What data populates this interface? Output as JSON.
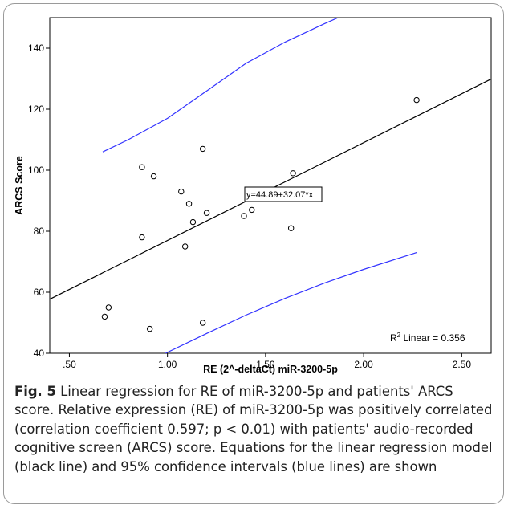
{
  "chart_data": {
    "type": "scatter",
    "xlabel": "RE (2^-deltaCt) miR-3200-5p",
    "ylabel": "ARCS Score",
    "xlim": [
      0.4,
      2.65
    ],
    "ylim": [
      40,
      150
    ],
    "x_ticks": [
      0.5,
      1.0,
      1.5,
      2.0,
      2.5
    ],
    "x_tick_labels": [
      ".50",
      "1.00",
      "1.50",
      "2.00",
      "2.50"
    ],
    "y_ticks": [
      40,
      60,
      80,
      100,
      120,
      140
    ],
    "y_tick_labels": [
      "40",
      "60",
      "80",
      "100",
      "120",
      "140"
    ],
    "points": [
      {
        "x": 0.68,
        "y": 52
      },
      {
        "x": 0.7,
        "y": 55
      },
      {
        "x": 0.87,
        "y": 78
      },
      {
        "x": 0.87,
        "y": 101
      },
      {
        "x": 0.91,
        "y": 48
      },
      {
        "x": 0.93,
        "y": 98
      },
      {
        "x": 1.07,
        "y": 93
      },
      {
        "x": 1.09,
        "y": 75
      },
      {
        "x": 1.11,
        "y": 89
      },
      {
        "x": 1.13,
        "y": 83
      },
      {
        "x": 1.18,
        "y": 107
      },
      {
        "x": 1.18,
        "y": 50
      },
      {
        "x": 1.2,
        "y": 86
      },
      {
        "x": 1.39,
        "y": 85
      },
      {
        "x": 1.43,
        "y": 87
      },
      {
        "x": 1.63,
        "y": 81
      },
      {
        "x": 1.64,
        "y": 99
      },
      {
        "x": 2.27,
        "y": 123
      }
    ],
    "fit_line": {
      "intercept": 44.89,
      "slope": 32.07,
      "x_range": [
        0.4,
        2.65
      ]
    },
    "confidence_upper": {
      "x": [
        0.67,
        0.8,
        1.0,
        1.2,
        1.4,
        1.6,
        1.8,
        1.94
      ],
      "y": [
        106,
        110,
        117,
        126,
        135,
        142,
        148,
        152
      ]
    },
    "confidence_lower": {
      "x": [
        0.99,
        1.2,
        1.4,
        1.6,
        1.8,
        2.0,
        2.27
      ],
      "y": [
        40,
        46.5,
        52.5,
        58,
        63,
        67.5,
        73
      ]
    },
    "fit_colors": {
      "fit": "#000000",
      "confidence": "#3333ff",
      "points": "#000000"
    },
    "equation_label": "y=44.89+32.07*x",
    "r2_label_prefix": "R",
    "r2_label_sup": "2",
    "r2_label_suffix": " Linear = 0.356",
    "grid": false,
    "legend": "none"
  },
  "caption": {
    "label": "Fig. 5",
    "text": " Linear regression for RE of miR-3200-5p and patients' ARCS score. Relative expression (RE) of miR-3200-5p was positively correlated (correlation coefficient 0.597; p < 0.01) with patients' audio-recorded cognitive screen (ARCS) score. Equations for the linear regression model (black line) and 95% confidence intervals (blue lines) are shown"
  }
}
